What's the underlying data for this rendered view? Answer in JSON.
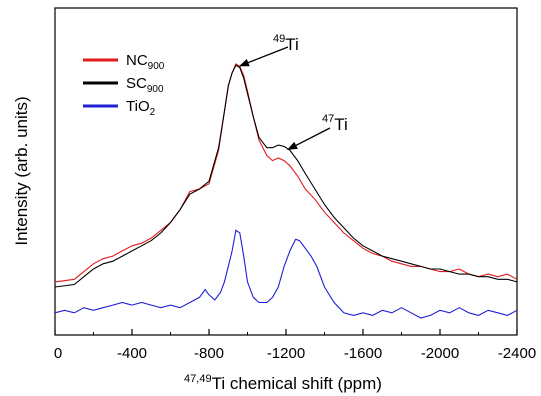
{
  "chart_data": {
    "type": "line",
    "title": "",
    "xlabel": {
      "sup": "47,49",
      "text": "Ti chemical shift (ppm)"
    },
    "ylabel": "Intensity (arb. units)",
    "xlim": [
      0,
      -2400
    ],
    "ylim": [
      0,
      1
    ],
    "x_reversed": true,
    "y_ticks_shown": false,
    "grid": false,
    "legend_position": "top-left",
    "x_ticks": [
      0,
      -400,
      -800,
      -1200,
      -1600,
      -2000,
      -2400
    ],
    "x_tick_labels": [
      "0",
      "-400",
      "-800",
      "-1200",
      "-1600",
      "-2000",
      "-2400"
    ],
    "series": [
      {
        "name": "NC",
        "name_sub": "900",
        "color": "#e31a1c",
        "x": [
          0,
          -100,
          -150,
          -200,
          -250,
          -300,
          -350,
          -400,
          -450,
          -500,
          -550,
          -600,
          -650,
          -700,
          -750,
          -800,
          -850,
          -880,
          -900,
          -920,
          -940,
          -960,
          -980,
          -1000,
          -1030,
          -1060,
          -1100,
          -1130,
          -1160,
          -1190,
          -1220,
          -1260,
          -1300,
          -1350,
          -1400,
          -1450,
          -1500,
          -1550,
          -1600,
          -1650,
          -1700,
          -1750,
          -1800,
          -1850,
          -1900,
          -1950,
          -2000,
          -2050,
          -2100,
          -2150,
          -2200,
          -2250,
          -2300,
          -2350,
          -2400
        ],
        "y": [
          0.14,
          0.15,
          0.18,
          0.21,
          0.23,
          0.24,
          0.26,
          0.28,
          0.29,
          0.31,
          0.34,
          0.37,
          0.42,
          0.49,
          0.5,
          0.52,
          0.65,
          0.8,
          0.9,
          0.95,
          0.985,
          0.975,
          0.94,
          0.88,
          0.78,
          0.69,
          0.63,
          0.61,
          0.62,
          0.61,
          0.59,
          0.55,
          0.5,
          0.46,
          0.41,
          0.37,
          0.33,
          0.3,
          0.27,
          0.25,
          0.24,
          0.22,
          0.21,
          0.2,
          0.2,
          0.19,
          0.18,
          0.18,
          0.19,
          0.17,
          0.16,
          0.17,
          0.16,
          0.17,
          0.15
        ]
      },
      {
        "name": "SC",
        "name_sub": "900",
        "color": "#000000",
        "x": [
          0,
          -100,
          -150,
          -200,
          -250,
          -300,
          -350,
          -400,
          -450,
          -500,
          -550,
          -600,
          -650,
          -700,
          -750,
          -800,
          -850,
          -880,
          -900,
          -920,
          -940,
          -960,
          -980,
          -1000,
          -1030,
          -1060,
          -1100,
          -1130,
          -1160,
          -1190,
          -1220,
          -1260,
          -1300,
          -1350,
          -1400,
          -1450,
          -1500,
          -1550,
          -1600,
          -1650,
          -1700,
          -1750,
          -1800,
          -1850,
          -1900,
          -1950,
          -2000,
          -2050,
          -2100,
          -2150,
          -2200,
          -2250,
          -2300,
          -2350,
          -2400
        ],
        "y": [
          0.12,
          0.13,
          0.16,
          0.19,
          0.21,
          0.22,
          0.24,
          0.26,
          0.28,
          0.3,
          0.33,
          0.37,
          0.42,
          0.48,
          0.5,
          0.53,
          0.66,
          0.8,
          0.9,
          0.95,
          0.98,
          0.97,
          0.93,
          0.87,
          0.78,
          0.7,
          0.66,
          0.66,
          0.67,
          0.665,
          0.65,
          0.61,
          0.56,
          0.5,
          0.44,
          0.39,
          0.35,
          0.31,
          0.28,
          0.26,
          0.24,
          0.23,
          0.22,
          0.21,
          0.2,
          0.19,
          0.19,
          0.18,
          0.17,
          0.17,
          0.16,
          0.16,
          0.15,
          0.15,
          0.14
        ]
      },
      {
        "name": "TiO",
        "name_sub": "2",
        "color": "#1f1fd6",
        "x": [
          0,
          -50,
          -100,
          -150,
          -200,
          -250,
          -300,
          -350,
          -400,
          -450,
          -500,
          -550,
          -600,
          -650,
          -700,
          -750,
          -780,
          -800,
          -830,
          -860,
          -880,
          -900,
          -920,
          -940,
          -960,
          -980,
          -1000,
          -1030,
          -1060,
          -1100,
          -1130,
          -1160,
          -1190,
          -1220,
          -1250,
          -1270,
          -1300,
          -1330,
          -1360,
          -1400,
          -1450,
          -1500,
          -1550,
          -1600,
          -1650,
          -1700,
          -1750,
          -1800,
          -1850,
          -1900,
          -1950,
          -2000,
          -2050,
          -2100,
          -2150,
          -2200,
          -2250,
          -2300,
          -2350,
          -2400
        ],
        "y": [
          0.02,
          0.03,
          0.02,
          0.04,
          0.03,
          0.04,
          0.05,
          0.06,
          0.05,
          0.06,
          0.05,
          0.04,
          0.05,
          0.04,
          0.06,
          0.08,
          0.11,
          0.09,
          0.07,
          0.1,
          0.14,
          0.2,
          0.26,
          0.34,
          0.33,
          0.24,
          0.14,
          0.08,
          0.06,
          0.06,
          0.08,
          0.12,
          0.2,
          0.26,
          0.305,
          0.3,
          0.27,
          0.24,
          0.2,
          0.12,
          0.06,
          0.02,
          0.01,
          0.02,
          0.01,
          0.03,
          0.02,
          0.04,
          0.02,
          0.0,
          0.01,
          0.03,
          0.02,
          0.04,
          0.02,
          0.01,
          0.03,
          0.02,
          0.01,
          0.03
        ]
      }
    ],
    "annotations": [
      {
        "sup": "49",
        "text": "Ti",
        "arrow_to_x": -940,
        "arrow_to_y": 0.985
      },
      {
        "sup": "47",
        "text": "Ti",
        "arrow_to_x": -1190,
        "arrow_to_y": 0.665
      }
    ]
  }
}
